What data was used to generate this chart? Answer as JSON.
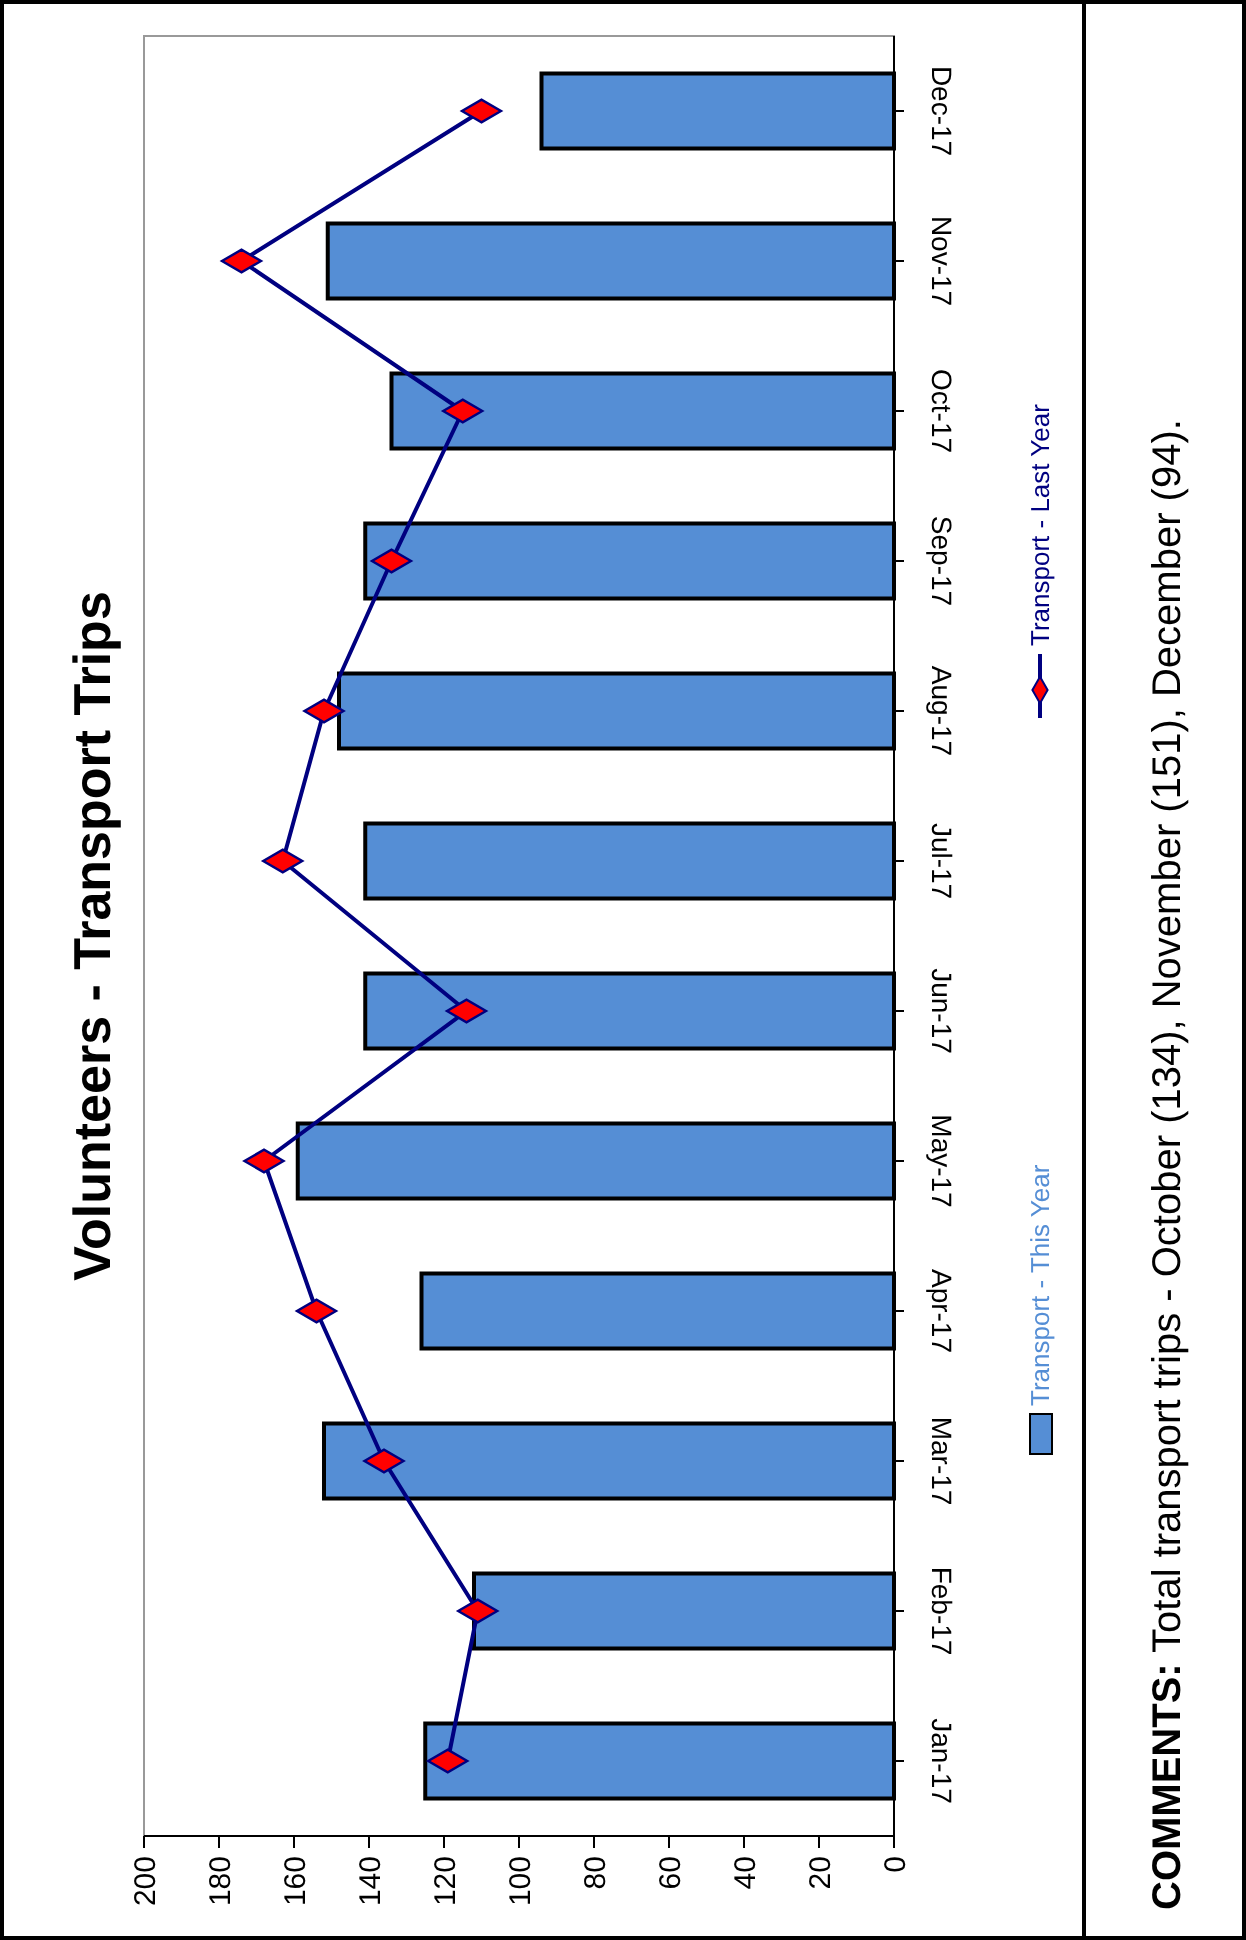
{
  "chart_data": {
    "type": "bar",
    "orientation": "horizontal",
    "title": "Volunteers - Transport Trips",
    "categories": [
      "Dec-17",
      "Nov-17",
      "Oct-17",
      "Sep-17",
      "Aug-17",
      "Jul-17",
      "Jun-17",
      "May-17",
      "Apr-17",
      "Mar-17",
      "Feb-17",
      "Jan-17"
    ],
    "series": [
      {
        "name": "Transport - This Year",
        "color": "#558ed5",
        "values": [
          94,
          151,
          134,
          141,
          148,
          141,
          141,
          159,
          126,
          152,
          112,
          125
        ]
      },
      {
        "name": "Transport - Last Year",
        "type": "line",
        "color": "#000080",
        "values": [
          110,
          174,
          115,
          134,
          152,
          163,
          114,
          168,
          154,
          136,
          111,
          119
        ]
      }
    ],
    "xlim": [
      200,
      0
    ],
    "xticks": [
      200,
      180,
      160,
      140,
      120,
      100,
      80,
      60,
      40,
      20,
      0
    ],
    "grid": false,
    "legend": "right",
    "marker": "diamond",
    "line_style": "solid",
    "annotations": [
      "COMMENTS: Total transport trips - October (134), November (151), December (94)."
    ]
  }
}
